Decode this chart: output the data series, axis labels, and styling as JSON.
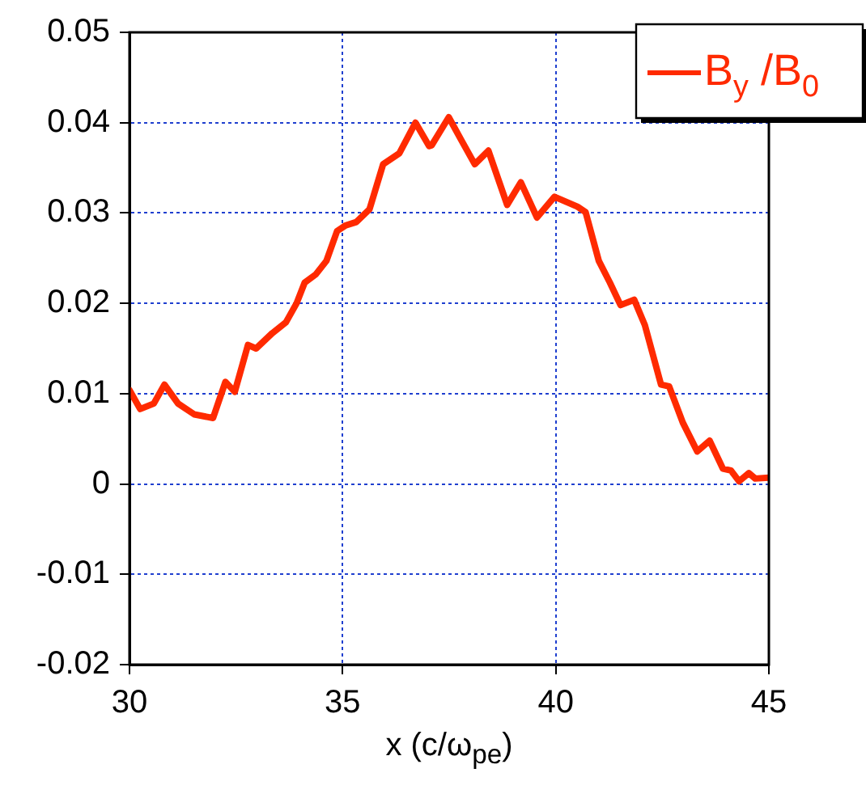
{
  "chart_data": {
    "type": "line",
    "xlabel": "x (c/ω$_{pe}$)",
    "xlim": [
      30,
      45
    ],
    "xticks": [
      30,
      35,
      40,
      45
    ],
    "ylim": [
      -0.02,
      0.05
    ],
    "yticks": [
      -0.02,
      -0.01,
      0,
      0.01,
      0.02,
      0.03,
      0.04,
      0.05
    ],
    "grid": true,
    "legend": "top right",
    "marker": "none",
    "line_style": "solid",
    "x": [
      30.0,
      30.25,
      30.57,
      30.82,
      31.14,
      31.52,
      31.96,
      32.25,
      32.47,
      32.78,
      32.97,
      33.35,
      33.67,
      33.92,
      34.11,
      34.37,
      34.62,
      34.87,
      35.06,
      35.32,
      35.63,
      35.95,
      36.33,
      36.71,
      37.03,
      37.09,
      37.49,
      37.78,
      38.1,
      38.42,
      38.86,
      39.18,
      39.56,
      39.97,
      40.51,
      40.7,
      41.01,
      41.27,
      41.52,
      41.84,
      42.09,
      42.47,
      42.66,
      42.98,
      43.32,
      43.61,
      43.92,
      44.11,
      44.3,
      44.53,
      44.68,
      45.0
    ],
    "series": [
      {
        "name": "B$_{y}$ /B$_{0}$",
        "color": "#ff2a00",
        "values": [
          0.0104,
          0.0083,
          0.0089,
          0.011,
          0.0089,
          0.0077,
          0.0073,
          0.0113,
          0.0102,
          0.0154,
          0.015,
          0.0167,
          0.0179,
          0.02,
          0.0223,
          0.0232,
          0.0247,
          0.028,
          0.0286,
          0.029,
          0.0304,
          0.0354,
          0.0366,
          0.04,
          0.0374,
          0.0375,
          0.0406,
          0.0381,
          0.0354,
          0.0369,
          0.0309,
          0.0334,
          0.0295,
          0.0318,
          0.0307,
          0.0301,
          0.0247,
          0.0223,
          0.0198,
          0.0204,
          0.0176,
          0.011,
          0.0108,
          0.0068,
          0.0036,
          0.0048,
          0.0017,
          0.0015,
          0.0003,
          0.0012,
          0.0006,
          0.0007
        ]
      }
    ]
  }
}
